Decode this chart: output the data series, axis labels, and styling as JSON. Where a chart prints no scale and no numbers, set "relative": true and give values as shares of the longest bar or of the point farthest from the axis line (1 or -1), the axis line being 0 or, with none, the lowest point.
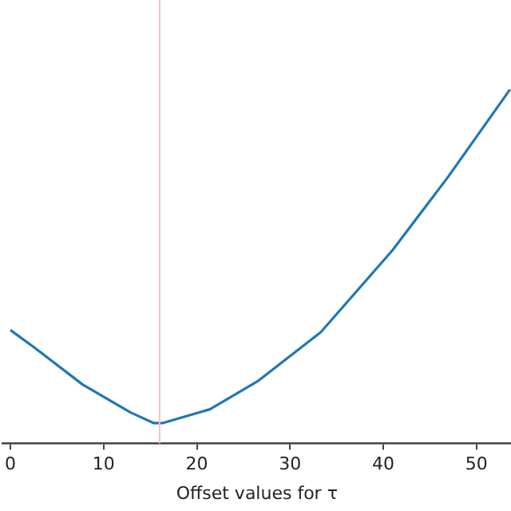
{
  "chart_data": {
    "type": "line",
    "xlabel": "Offset values for τ",
    "relative": true,
    "x": [
      0,
      2.6,
      7.75,
      12.9,
      15.4,
      16.3,
      21.4,
      26.5,
      33.3,
      41,
      46.9,
      53.6
    ],
    "series": [
      {
        "color": "#1f77b4",
        "values": [
          0.32,
          0.27,
          0.166,
          0.087,
          0.057,
          0.057,
          0.096,
          0.175,
          0.314,
          0.546,
          0.751,
          1
        ]
      }
    ],
    "xlim": [
      -0.8,
      53.7
    ],
    "xticks": [
      0,
      10,
      20,
      30,
      40,
      50
    ],
    "ref_lines": [
      {
        "axis": "x",
        "value": 16,
        "color": "#f4c2c8"
      }
    ],
    "grid": false,
    "legend": false,
    "tick_labels": "x"
  }
}
